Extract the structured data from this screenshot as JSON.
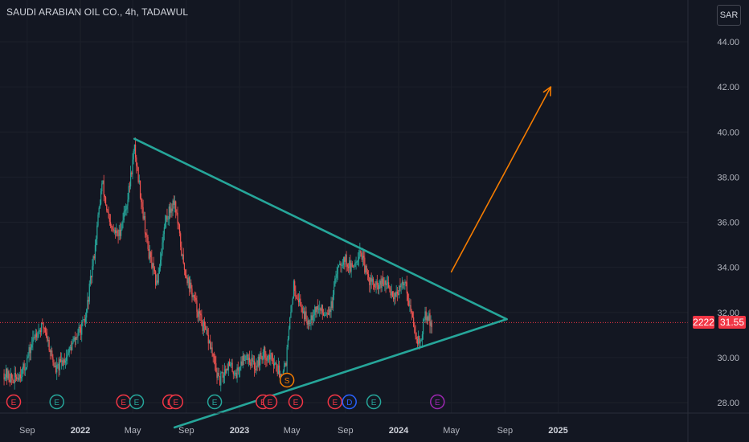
{
  "header": {
    "title": "SAUDI ARABIAN OIL CO., 4h, TADAWUL",
    "currency_label": "SAR"
  },
  "price_tags": {
    "count_label": "2222",
    "last_price_label": "31.55"
  },
  "chart_data": {
    "type": "candlestick",
    "title": "SAUDI ARABIAN OIL CO., 4h, TADAWUL",
    "xlabel": "",
    "ylabel": "",
    "ylim": [
      27.5,
      45.5
    ],
    "y_ticks": [
      "28.00",
      "30.00",
      "32.00",
      "34.00",
      "36.00",
      "38.00",
      "40.00",
      "42.00",
      "44.00"
    ],
    "x_ticks": [
      {
        "label": "Sep",
        "date": "2021-09-01",
        "bold": false
      },
      {
        "label": "2022",
        "date": "2022-01-01",
        "bold": true
      },
      {
        "label": "May",
        "date": "2022-05-01",
        "bold": false
      },
      {
        "label": "Sep",
        "date": "2022-09-01",
        "bold": false
      },
      {
        "label": "2023",
        "date": "2023-01-01",
        "bold": true
      },
      {
        "label": "May",
        "date": "2023-05-01",
        "bold": false
      },
      {
        "label": "Sep",
        "date": "2023-09-01",
        "bold": false
      },
      {
        "label": "2024",
        "date": "2024-01-01",
        "bold": true
      },
      {
        "label": "May",
        "date": "2024-05-01",
        "bold": false
      },
      {
        "label": "Sep",
        "date": "2024-09-01",
        "bold": false
      },
      {
        "label": "2025",
        "date": "2025-01-01",
        "bold": true
      }
    ],
    "price_path": [
      [
        "2021-07-10",
        29.3
      ],
      [
        "2021-08-01",
        29.0
      ],
      [
        "2021-08-25",
        29.5
      ],
      [
        "2021-09-20",
        31.1
      ],
      [
        "2021-10-10",
        31.4
      ],
      [
        "2021-11-05",
        29.4
      ],
      [
        "2021-12-01",
        30.1
      ],
      [
        "2021-12-25",
        31.0
      ],
      [
        "2022-01-12",
        31.6
      ],
      [
        "2022-02-01",
        34.5
      ],
      [
        "2022-02-20",
        37.8
      ],
      [
        "2022-03-10",
        35.7
      ],
      [
        "2022-03-30",
        35.4
      ],
      [
        "2022-04-20",
        37.1
      ],
      [
        "2022-05-05",
        39.3
      ],
      [
        "2022-05-18",
        37.4
      ],
      [
        "2022-06-05",
        34.8
      ],
      [
        "2022-06-25",
        33.2
      ],
      [
        "2022-07-15",
        36.1
      ],
      [
        "2022-08-05",
        37.0
      ],
      [
        "2022-08-25",
        34.1
      ],
      [
        "2022-09-15",
        32.8
      ],
      [
        "2022-10-05",
        31.6
      ],
      [
        "2022-10-25",
        30.6
      ],
      [
        "2022-11-15",
        28.9
      ],
      [
        "2022-12-05",
        29.7
      ],
      [
        "2022-12-25",
        29.3
      ],
      [
        "2023-01-15",
        30.2
      ],
      [
        "2023-02-05",
        29.6
      ],
      [
        "2023-02-25",
        30.2
      ],
      [
        "2023-03-20",
        29.9
      ],
      [
        "2023-04-05",
        29.2
      ],
      [
        "2023-04-18",
        29.9
      ],
      [
        "2023-05-05",
        33.2
      ],
      [
        "2023-05-20",
        32.4
      ],
      [
        "2023-06-05",
        31.6
      ],
      [
        "2023-06-25",
        32.2
      ],
      [
        "2023-07-15",
        32.0
      ],
      [
        "2023-08-01",
        32.3
      ],
      [
        "2023-08-15",
        34.2
      ],
      [
        "2023-08-30",
        34.4
      ],
      [
        "2023-09-15",
        33.9
      ],
      [
        "2023-10-05",
        34.8
      ],
      [
        "2023-10-20",
        33.6
      ],
      [
        "2023-11-10",
        33.1
      ],
      [
        "2023-12-01",
        33.3
      ],
      [
        "2023-12-20",
        32.8
      ],
      [
        "2024-01-05",
        33.0
      ],
      [
        "2024-01-15",
        33.5
      ],
      [
        "2024-01-28",
        32.1
      ],
      [
        "2024-02-10",
        31.0
      ],
      [
        "2024-02-20",
        30.6
      ],
      [
        "2024-03-01",
        31.9
      ],
      [
        "2024-03-10",
        31.7
      ],
      [
        "2024-03-18",
        31.55
      ]
    ],
    "last_price": 31.55,
    "drawings": [
      {
        "name": "upper-trendline",
        "color": "#26a69a",
        "points": [
          [
            "2022-05-05",
            39.7
          ],
          [
            "2024-09-05",
            31.7
          ]
        ]
      },
      {
        "name": "lower-trendline",
        "color": "#26a69a",
        "points": [
          [
            "2022-08-05",
            26.9
          ],
          [
            "2024-09-05",
            31.7
          ]
        ]
      },
      {
        "name": "forecast-arrow",
        "color": "#f57c00",
        "points": [
          [
            "2024-05-01",
            33.8
          ],
          [
            "2024-12-15",
            42.0
          ]
        ]
      }
    ],
    "event_markers": [
      {
        "date": "2021-08-01",
        "letter": "E",
        "color": "#f23645"
      },
      {
        "date": "2021-11-08",
        "letter": "E",
        "color": "#26a69a"
      },
      {
        "date": "2022-04-10",
        "letter": "E",
        "color": "#f23645"
      },
      {
        "date": "2022-05-10",
        "letter": "E",
        "color": "#26a69a"
      },
      {
        "date": "2022-07-25",
        "letter": "E",
        "color": "#f23645"
      },
      {
        "date": "2022-08-08",
        "letter": "E",
        "color": "#f23645"
      },
      {
        "date": "2022-11-05",
        "letter": "E",
        "color": "#26a69a"
      },
      {
        "date": "2023-02-24",
        "letter": "E",
        "color": "#f23645"
      },
      {
        "date": "2023-03-12",
        "letter": "E",
        "color": "#f23645"
      },
      {
        "date": "2023-05-10",
        "letter": "E",
        "color": "#f23645"
      },
      {
        "date": "2023-08-08",
        "letter": "E",
        "color": "#f23645"
      },
      {
        "date": "2023-09-10",
        "letter": "D",
        "color": "#2962ff"
      },
      {
        "date": "2023-11-05",
        "letter": "E",
        "color": "#26a69a"
      },
      {
        "date": "2024-03-30",
        "letter": "E",
        "color": "#9c27b0"
      }
    ],
    "split_marker": {
      "date": "2023-04-20",
      "letter": "S",
      "color": "#f57c00"
    }
  }
}
